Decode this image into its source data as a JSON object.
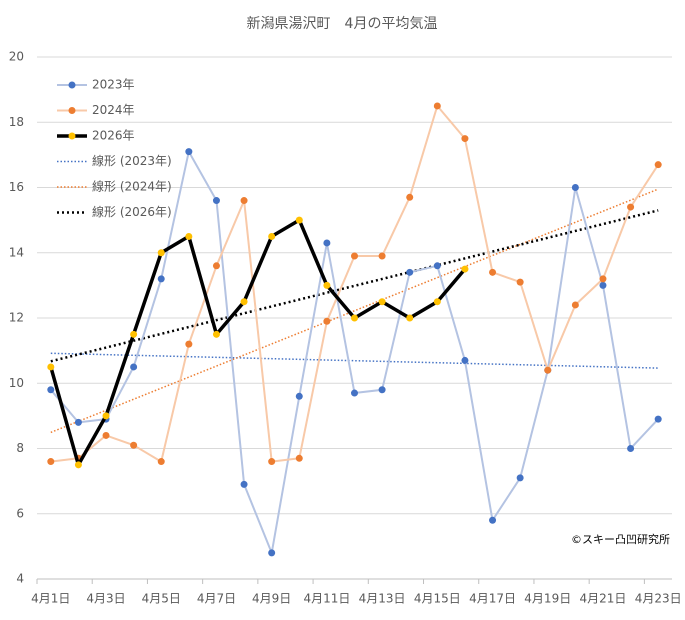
{
  "chart_data": {
    "type": "line",
    "title": "新潟県湯沢町　4月の平均気温",
    "note": "©スキー凸凹研究所",
    "categories": [
      "4月1日",
      null,
      "4月3日",
      null,
      "4月5日",
      null,
      "4月7日",
      null,
      "4月9日",
      null,
      "4月11日",
      null,
      "4月13日",
      null,
      "4月15日",
      null,
      "4月17日",
      null,
      "4月19日",
      null,
      "4月21日",
      null,
      "4月23日"
    ],
    "ylim": [
      4,
      20
    ],
    "yticks": [
      4,
      6,
      8,
      10,
      12,
      14,
      16,
      18,
      20
    ],
    "grid": true,
    "legend": "top-left",
    "series": [
      {
        "name": "2023年",
        "color": "#4472c4",
        "line_color": "#b4c3e2",
        "line_width": 2,
        "values": [
          9.8,
          8.8,
          8.9,
          10.5,
          13.2,
          17.1,
          15.6,
          6.9,
          4.8,
          9.6,
          14.3,
          9.7,
          9.8,
          13.4,
          13.6,
          10.7,
          5.8,
          7.1,
          10.4,
          16.0,
          13.0,
          8.0,
          8.9
        ],
        "trendline": {
          "name": "線形 (2023年)",
          "color": "#4472c4"
        }
      },
      {
        "name": "2024年",
        "color": "#ed7d31",
        "line_color": "#f8c9a8",
        "line_width": 2,
        "values": [
          7.6,
          7.7,
          8.4,
          8.1,
          7.6,
          11.2,
          13.6,
          15.6,
          7.6,
          7.7,
          11.9,
          13.9,
          13.9,
          15.7,
          18.5,
          17.5,
          13.4,
          13.1,
          10.4,
          12.4,
          13.2,
          15.4,
          16.7
        ],
        "trendline": {
          "name": "線形 (2024年)",
          "color": "#ed7d31"
        }
      },
      {
        "name": "2026年",
        "color": "#ffc000",
        "line_color": "#000000",
        "line_width": 3.5,
        "values": [
          10.5,
          7.5,
          9.0,
          11.5,
          14.0,
          14.5,
          11.5,
          12.5,
          14.5,
          15.0,
          13.0,
          12.0,
          12.5,
          12.0,
          12.5,
          13.5,
          null,
          null,
          null,
          null,
          null,
          null,
          null
        ],
        "trendline": {
          "name": "線形 (2026年)",
          "color": "#000000"
        }
      }
    ]
  }
}
